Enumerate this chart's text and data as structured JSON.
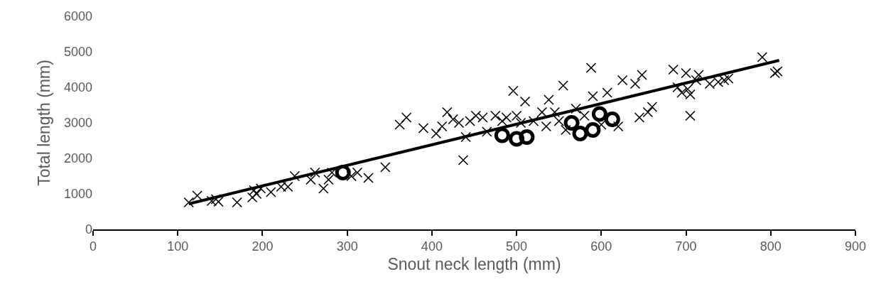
{
  "chart_data": {
    "type": "scatter",
    "xlabel": "Snout neck length (mm)",
    "ylabel": "Total length (mm)",
    "xlim": [
      0,
      900
    ],
    "xticks": [
      0,
      100,
      200,
      300,
      400,
      500,
      600,
      700,
      800,
      900
    ],
    "ylim": [
      0,
      6000
    ],
    "yticks": [
      0,
      1000,
      2000,
      3000,
      4000,
      5000,
      6000
    ],
    "grid": false,
    "series": [
      {
        "marker": "cross",
        "color": "#000000",
        "x": [
          113,
          123,
          140,
          145,
          148,
          170,
          188,
          190,
          193,
          198,
          210,
          222,
          230,
          238,
          257,
          262,
          272,
          278,
          282,
          305,
          312,
          325,
          345,
          362,
          370,
          390,
          405,
          412,
          418,
          425,
          432,
          437,
          440,
          445,
          452,
          460,
          465,
          475,
          483,
          488,
          496,
          500,
          505,
          510,
          520,
          530,
          535,
          538,
          545,
          550,
          555,
          558,
          570,
          580,
          588,
          590,
          600,
          607,
          620,
          625,
          640,
          645,
          648,
          655,
          660,
          685,
          690,
          695,
          700,
          702,
          705,
          705,
          712,
          715,
          728,
          738,
          745,
          750,
          790,
          805,
          808
        ],
        "values": [
          760,
          950,
          800,
          850,
          780,
          760,
          900,
          1100,
          1000,
          1150,
          1050,
          1200,
          1200,
          1500,
          1400,
          1600,
          1150,
          1400,
          1600,
          1500,
          1600,
          1450,
          1750,
          2950,
          3150,
          2850,
          2700,
          2900,
          3300,
          3100,
          3000,
          1950,
          2600,
          3050,
          3200,
          3150,
          2750,
          3200,
          3050,
          3150,
          3900,
          3200,
          3000,
          3600,
          3050,
          3300,
          2900,
          3650,
          3300,
          3050,
          4050,
          2800,
          3400,
          3200,
          4550,
          3750,
          2950,
          3850,
          2900,
          4200,
          4100,
          3150,
          4350,
          3300,
          3450,
          4500,
          4000,
          3850,
          4400,
          3950,
          3200,
          3800,
          4200,
          4350,
          4100,
          4150,
          4200,
          4250,
          4850,
          4400,
          4450
        ]
      },
      {
        "marker": "circle",
        "color": "#000000",
        "x": [
          295,
          483,
          500,
          512,
          565,
          575,
          590,
          598,
          613
        ],
        "values": [
          1600,
          2650,
          2550,
          2600,
          3000,
          2700,
          2800,
          3250,
          3100
        ]
      },
      {
        "type": "line",
        "marker": "none",
        "line_style": "solid",
        "color": "#000000",
        "x": [
          113,
          810
        ],
        "values": [
          720,
          4760
        ]
      }
    ]
  }
}
